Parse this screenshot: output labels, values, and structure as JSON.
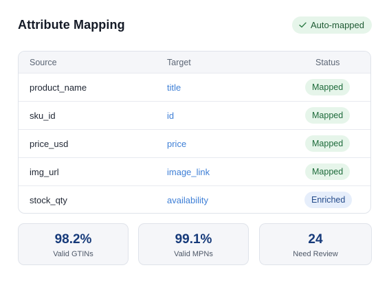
{
  "header": {
    "title": "Attribute Mapping",
    "badge_label": "Auto-mapped",
    "badge_icon": "check-icon"
  },
  "table": {
    "columns": [
      "Source",
      "Target",
      "Status"
    ],
    "rows": [
      {
        "source": "product_name",
        "target": "title",
        "status": "Mapped"
      },
      {
        "source": "sku_id",
        "target": "id",
        "status": "Mapped"
      },
      {
        "source": "price_usd",
        "target": "price",
        "status": "Mapped"
      },
      {
        "source": "img_url",
        "target": "image_link",
        "status": "Mapped"
      },
      {
        "source": "stock_qty",
        "target": "availability",
        "status": "Enriched"
      }
    ]
  },
  "stats": [
    {
      "value": "98.2%",
      "label": "Valid GTINs"
    },
    {
      "value": "99.1%",
      "label": "Valid MPNs"
    },
    {
      "value": "24",
      "label": "Need Review"
    }
  ],
  "colors": {
    "mapped_bg": "#e6f5ea",
    "mapped_text": "#1d6a3a",
    "enriched_bg": "#e6eefb",
    "enriched_text": "#234a8a",
    "target_link": "#3e7fd6",
    "stat_value": "#163a7a"
  }
}
